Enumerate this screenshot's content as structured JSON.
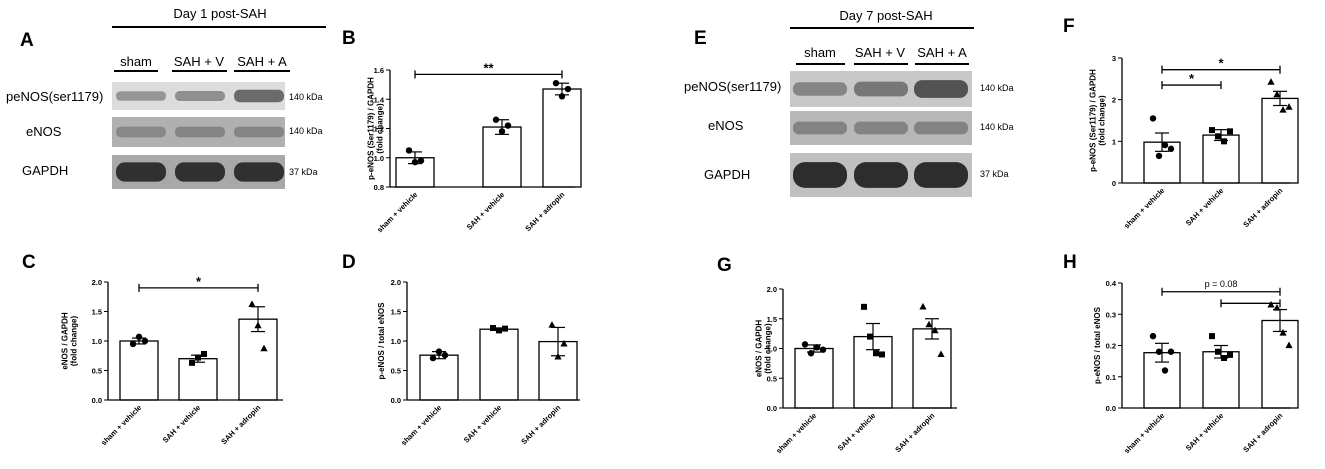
{
  "blots": [
    {
      "panel": "A",
      "title": "Day 1 post-SAH",
      "lanes": [
        "sham",
        "SAH + V",
        "SAH + A"
      ],
      "rows": [
        {
          "label": "peNOS(ser1179)",
          "kda": "140 kDa",
          "lane_intensity": [
            0.25,
            0.3,
            0.55
          ],
          "bg": "#dcdcdc"
        },
        {
          "label": "eNOS",
          "kda": "140 kDa",
          "lane_intensity": [
            0.3,
            0.32,
            0.32
          ],
          "bg": "#b0b0b0"
        },
        {
          "label": "GAPDH",
          "kda": "37 kDa",
          "lane_intensity": [
            0.9,
            0.9,
            0.9
          ],
          "bg": "#a8a8a8"
        }
      ]
    },
    {
      "panel": "E",
      "title": "Day 7 post-SAH",
      "lanes": [
        "sham",
        "SAH + V",
        "SAH + A"
      ],
      "rows": [
        {
          "label": "peNOS(ser1179)",
          "kda": "140 kDa",
          "lane_intensity": [
            0.35,
            0.45,
            0.7
          ],
          "bg": "#c8c8c8"
        },
        {
          "label": "eNOS",
          "kda": "140 kDa",
          "lane_intensity": [
            0.35,
            0.35,
            0.35
          ],
          "bg": "#b8b8b8"
        },
        {
          "label": "GAPDH",
          "kda": "37 kDa",
          "lane_intensity": [
            0.95,
            0.95,
            0.95
          ],
          "bg": "#c0c0c0"
        }
      ]
    }
  ],
  "chart_data": [
    {
      "panel": "B",
      "type": "bar",
      "categories": [
        "sham + vehicle",
        "SAH + vehicle",
        "SAH + adropin"
      ],
      "values": [
        1.0,
        1.21,
        1.47
      ],
      "errors": [
        0.04,
        0.05,
        0.04
      ],
      "points": [
        [
          1.05,
          0.97,
          0.98
        ],
        [
          1.26,
          1.18,
          1.22
        ],
        [
          1.51,
          1.42,
          1.47
        ]
      ],
      "markers": [
        "circle",
        "circle",
        "circle"
      ],
      "ylabel": "p-eNOS (Ser1179) / GAPDH\n(fold change)",
      "ylim": [
        0.8,
        1.6
      ],
      "yticks": [
        "0.8",
        "1.0",
        "1.2",
        "1.4",
        "1.6"
      ],
      "annotations": [
        {
          "text": "**",
          "from": 0,
          "to": 2,
          "y": 1.57
        }
      ]
    },
    {
      "panel": "C",
      "type": "bar",
      "categories": [
        "sham + vehicle",
        "SAH + vehicle",
        "SAH + adropin"
      ],
      "values": [
        1.0,
        0.7,
        1.37
      ],
      "errors": [
        0.05,
        0.06,
        0.21
      ],
      "points": [
        [
          0.95,
          1.07,
          1.0
        ],
        [
          0.63,
          0.72,
          0.78
        ],
        [
          1.62,
          1.26,
          0.87
        ]
      ],
      "markers": [
        "circle",
        "square",
        "triangle"
      ],
      "ylabel": "eNOS / GAPDH\n(fold change)",
      "ylim": [
        0,
        2.0
      ],
      "yticks": [
        "0.0",
        "0.5",
        "1.0",
        "1.5",
        "2.0"
      ],
      "annotations": [
        {
          "text": "*",
          "from": 0,
          "to": 2,
          "y": 1.9
        }
      ]
    },
    {
      "panel": "D",
      "type": "bar",
      "categories": [
        "sham + vehicle",
        "SAH + vehicle",
        "SAH + adropin"
      ],
      "values": [
        0.76,
        1.2,
        0.99
      ],
      "errors": [
        0.06,
        0.02,
        0.24
      ],
      "points": [
        [
          0.71,
          0.82,
          0.76
        ],
        [
          1.22,
          1.18,
          1.21
        ],
        [
          1.27,
          0.73,
          0.95
        ]
      ],
      "markers": [
        "circle",
        "square",
        "triangle"
      ],
      "ylabel": "p-eNOS / total eNOS",
      "ylim": [
        0,
        2.0
      ],
      "yticks": [
        "0.0",
        "0.5",
        "1.0",
        "1.5",
        "2.0"
      ],
      "annotations": []
    },
    {
      "panel": "F",
      "type": "bar",
      "categories": [
        "sham + vehicle",
        "SAH + vehicle",
        "SAH + adropin"
      ],
      "values": [
        0.98,
        1.15,
        2.03
      ],
      "errors": [
        0.22,
        0.13,
        0.17
      ],
      "points": [
        [
          1.55,
          0.65,
          0.91,
          0.82
        ],
        [
          1.27,
          1.12,
          1.0,
          1.24
        ],
        [
          2.42,
          2.12,
          1.75,
          1.82
        ]
      ],
      "markers": [
        "circle",
        "square",
        "triangle"
      ],
      "ylabel": "p-eNOS (Ser1179) / GAPDH\n(fold change)",
      "ylim": [
        0,
        3
      ],
      "yticks": [
        "0",
        "1",
        "2",
        "3"
      ],
      "annotations": [
        {
          "text": "*",
          "from": 0,
          "to": 2,
          "y": 2.72
        },
        {
          "text": "*",
          "from": 0,
          "to": 1,
          "y": 2.35
        }
      ]
    },
    {
      "panel": "G",
      "type": "bar",
      "categories": [
        "sham + vehicle",
        "SAH + vehicle",
        "SAH + adropin"
      ],
      "values": [
        1.0,
        1.2,
        1.33
      ],
      "errors": [
        0.06,
        0.22,
        0.17
      ],
      "points": [
        [
          1.07,
          0.92,
          1.02,
          0.98
        ],
        [
          1.7,
          1.2,
          0.92,
          0.9
        ],
        [
          1.7,
          1.4,
          1.3,
          0.9
        ]
      ],
      "markers": [
        "circle",
        "square",
        "triangle"
      ],
      "ylabel": "eNOS / GAPDH\n(fold change)",
      "ylim": [
        0,
        2.0
      ],
      "yticks": [
        "0.0",
        "0.5",
        "1.0",
        "1.5",
        "2.0"
      ],
      "annotations": []
    },
    {
      "panel": "H",
      "type": "bar",
      "categories": [
        "sham + vehicle",
        "SAH + vehicle",
        "SAH + adropin"
      ],
      "values": [
        0.177,
        0.18,
        0.28
      ],
      "errors": [
        0.03,
        0.02,
        0.035
      ],
      "points": [
        [
          0.23,
          0.18,
          0.12,
          0.18
        ],
        [
          0.23,
          0.18,
          0.16,
          0.17
        ],
        [
          0.33,
          0.32,
          0.24,
          0.2
        ]
      ],
      "markers": [
        "circle",
        "square",
        "triangle"
      ],
      "ylabel": "p-eNOS / total eNOS",
      "ylim": [
        0,
        0.4
      ],
      "yticks": [
        "0.0",
        "0.1",
        "0.2",
        "0.3",
        "0.4"
      ],
      "annotations": [
        {
          "text": "p = 0.08",
          "from": 0,
          "to": 2,
          "y": 0.372
        },
        {
          "text": "",
          "from": 1,
          "to": 2,
          "y": 0.335
        }
      ]
    }
  ]
}
